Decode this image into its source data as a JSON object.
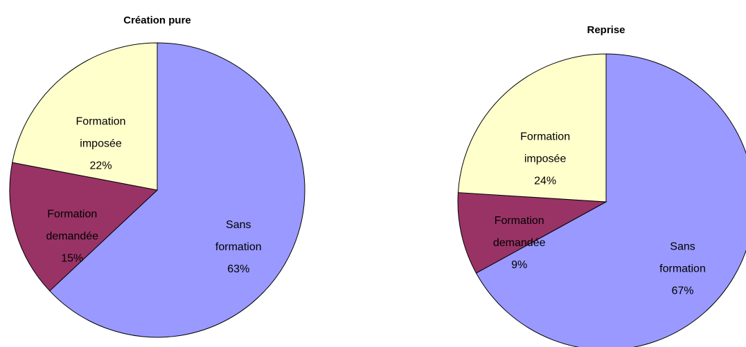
{
  "chart_data": [
    {
      "type": "pie",
      "title": "Création pure",
      "categories": [
        "Sans formation",
        "Formation demandée",
        "Formation imposée"
      ],
      "values": [
        63,
        15,
        22
      ],
      "value_labels": [
        "63%",
        "15%",
        "22%"
      ],
      "colors": [
        "#9999ff",
        "#993366",
        "#ffffcc"
      ]
    },
    {
      "type": "pie",
      "title": "Reprise",
      "categories": [
        "Sans formation",
        "Formation demandée",
        "Formation imposée"
      ],
      "values": [
        67,
        9,
        24
      ],
      "value_labels": [
        "67%",
        "9%",
        "24%"
      ],
      "colors": [
        "#9999ff",
        "#993366",
        "#ffffcc"
      ]
    }
  ]
}
